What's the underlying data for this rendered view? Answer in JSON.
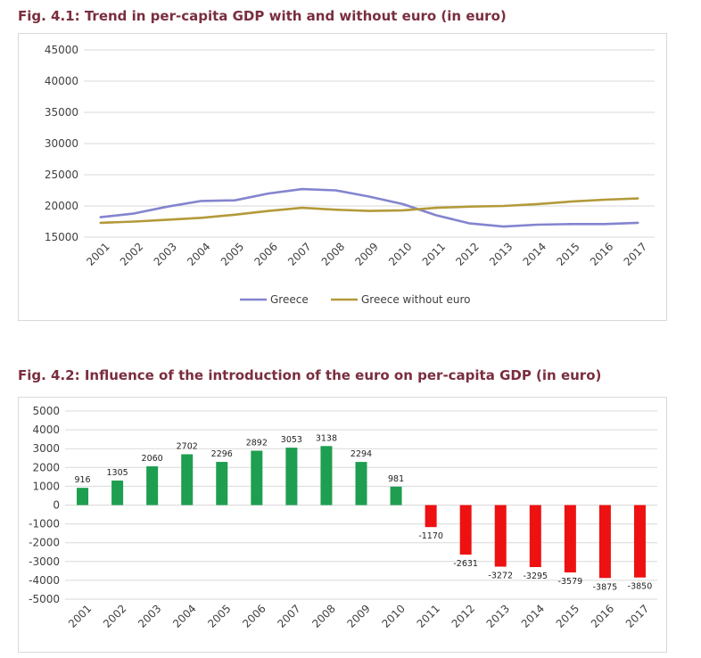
{
  "chart_data": [
    {
      "type": "line",
      "title": "Fig. 4.1: Trend in per-capita GDP with and without euro (in euro)",
      "x": [
        "2001",
        "2002",
        "2003",
        "2004",
        "2005",
        "2006",
        "2007",
        "2008",
        "2009",
        "2010",
        "2011",
        "2012",
        "2013",
        "2014",
        "2015",
        "2016",
        "2017"
      ],
      "ylim": [
        15000,
        45000
      ],
      "yticks": [
        45000,
        40000,
        35000,
        30000,
        25000,
        20000,
        15000
      ],
      "grid": true,
      "legend": "bottom",
      "series": [
        {
          "name": "Greece",
          "color": "#8484cf",
          "values": [
            18200,
            18800,
            19900,
            20800,
            20900,
            22000,
            22700,
            22500,
            21500,
            20300,
            18500,
            17200,
            16700,
            17000,
            17100,
            17100,
            17300
          ]
        },
        {
          "name": "Greece without euro",
          "color": "#b39a3a",
          "values": [
            17300,
            17500,
            17800,
            18100,
            18600,
            19200,
            19700,
            19400,
            19200,
            19300,
            19700,
            19900,
            20000,
            20300,
            20700,
            21000,
            21200
          ]
        }
      ]
    },
    {
      "type": "bar",
      "title": "Fig. 4.2: Influence of the introduction of the euro on per-capita GDP (in euro)",
      "categories": [
        "2001",
        "2002",
        "2003",
        "2004",
        "2005",
        "2006",
        "2007",
        "2008",
        "2009",
        "2010",
        "2011",
        "2012",
        "2013",
        "2014",
        "2015",
        "2016",
        "2017"
      ],
      "values": [
        916,
        1305,
        2060,
        2702,
        2296,
        2892,
        3053,
        3138,
        2294,
        981,
        -1170,
        -2631,
        -3272,
        -3295,
        -3579,
        -3875,
        -3850
      ],
      "ylim": [
        -5000,
        5000
      ],
      "yticks": [
        5000,
        4000,
        3000,
        2000,
        1000,
        0,
        -1000,
        -2000,
        -3000,
        -4000,
        -5000
      ],
      "grid": true,
      "positive_color": "#1e9e50",
      "negative_color": "#ee1111"
    }
  ]
}
